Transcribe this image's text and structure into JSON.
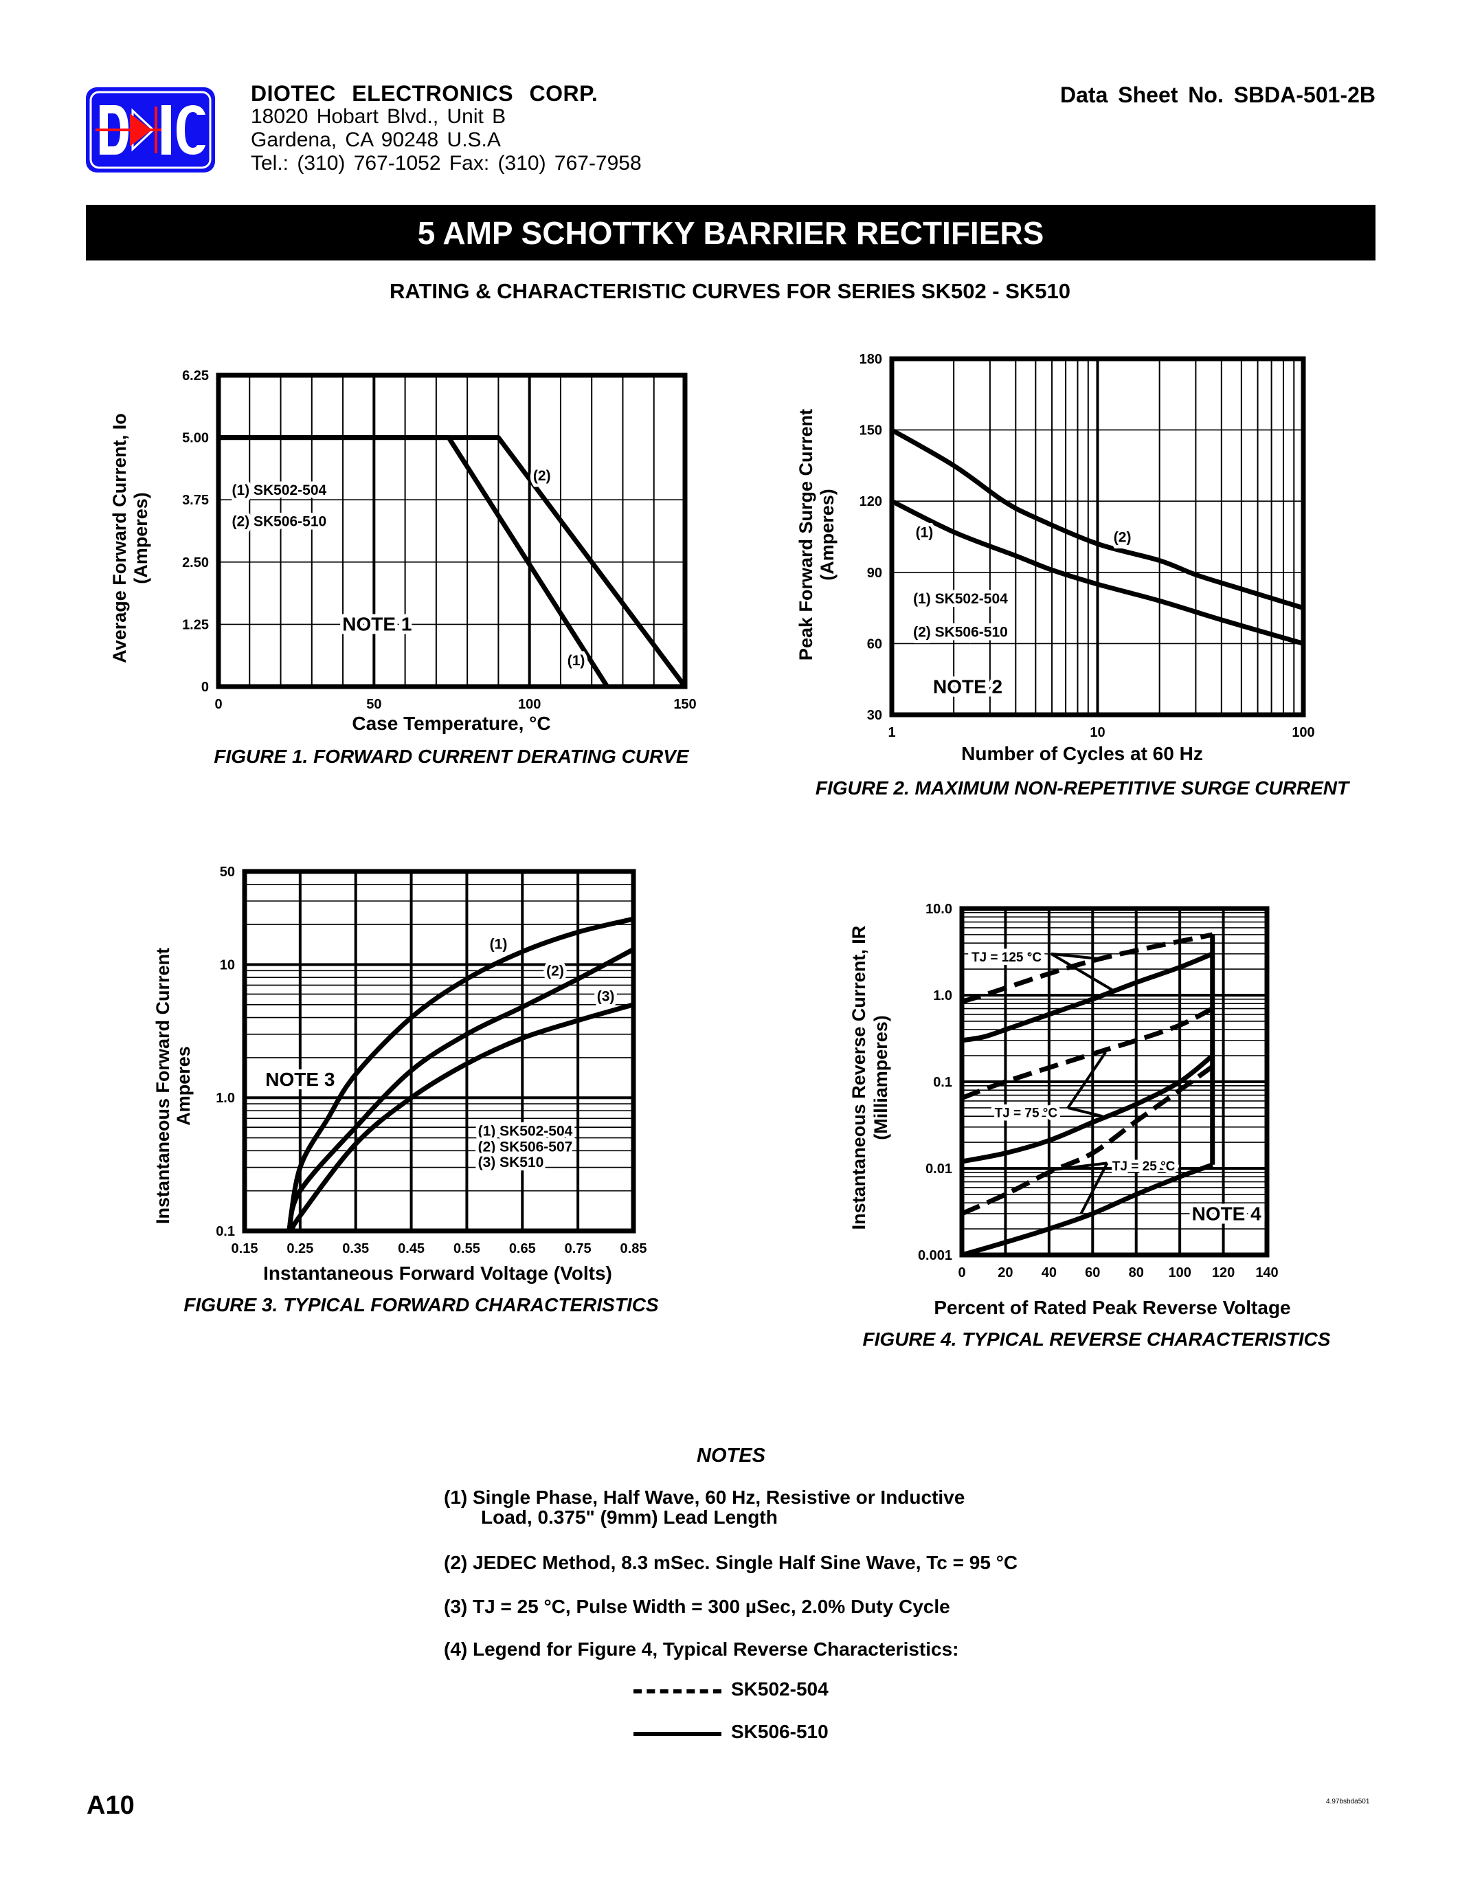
{
  "header": {
    "logo_text": "DIC",
    "company": "DIOTEC  ELECTRONICS  CORP.",
    "address_lines": [
      "18020 Hobart Blvd.,  Unit B",
      "Gardena, CA  90248    U.S.A",
      "Tel.:  (310) 767-1052    Fax:  (310) 767-7958"
    ],
    "data_sheet": "Data Sheet No.  SBDA-501-2B"
  },
  "title": "5 AMP SCHOTTKY BARRIER RECTIFIERS",
  "subtitle": "RATING & CHARACTERISTIC CURVES FOR SERIES SK502 - SK510",
  "colors": {
    "logo_blue": "#1010f0",
    "logo_red": "#ff1010",
    "ink": "#000000"
  },
  "chart_data": [
    {
      "type": "line",
      "title": "FIGURE 1.  FORWARD CURRENT DERATING CURVE",
      "xlabel": "Case Temperature, °C",
      "ylabel_lines": [
        "Average Forward Current, Io",
        "(Amperes)"
      ],
      "xscale": "linear",
      "yscale": "linear",
      "xlim": [
        0,
        150
      ],
      "ylim": [
        0,
        6.25
      ],
      "xticks": [
        0,
        50,
        100,
        150
      ],
      "xtick_labels": [
        "0",
        "50",
        "100",
        "150"
      ],
      "yticks": [
        0,
        1.25,
        2.5,
        3.75,
        5,
        6.25
      ],
      "ytick_labels": [
        "0",
        "1.25",
        "2.50",
        "3.75",
        "5.00",
        "6.25"
      ],
      "grid": true,
      "labels": [
        "(1) SK502-504",
        "(2) SK506-510",
        "NOTE 1",
        "(2)",
        "(1)"
      ],
      "series": [
        {
          "name": "(1) SK502-504",
          "style": "solid",
          "x": [
            0,
            74,
            125
          ],
          "y": [
            5,
            5,
            0
          ]
        },
        {
          "name": "(2) SK506-510",
          "style": "solid",
          "x": [
            0,
            90,
            150
          ],
          "y": [
            5,
            5,
            0
          ]
        }
      ]
    },
    {
      "type": "line",
      "title": "FIGURE 2.  MAXIMUM NON-REPETITIVE SURGE CURRENT",
      "xlabel": "Number of Cycles at 60 Hz",
      "ylabel_lines": [
        "Peak Forward Surge Current",
        "(Amperes)"
      ],
      "xscale": "log",
      "yscale": "linear",
      "xlim": [
        1,
        100
      ],
      "ylim": [
        30,
        180
      ],
      "xticks": [
        1,
        10,
        100
      ],
      "xtick_labels": [
        "1",
        "10",
        "100"
      ],
      "yticks": [
        30,
        60,
        90,
        120,
        150,
        180
      ],
      "ytick_labels": [
        "30",
        "60",
        "90",
        "120",
        "150",
        "180"
      ],
      "grid": true,
      "labels": [
        "(1)",
        "(2)",
        "(1) SK502-504",
        "(2) SK506-510",
        "NOTE 2"
      ],
      "series": [
        {
          "name": "(1) SK502-504",
          "style": "solid",
          "x": [
            1,
            2,
            4,
            6,
            10,
            20,
            40,
            100
          ],
          "y": [
            120,
            107,
            97,
            91,
            85,
            78,
            70,
            60
          ]
        },
        {
          "name": "(2) SK506-510",
          "style": "solid",
          "x": [
            1,
            2,
            3.5,
            5,
            10,
            20,
            30,
            50,
            100
          ],
          "y": [
            150,
            135,
            120,
            113,
            102,
            95,
            89,
            83,
            75
          ]
        }
      ]
    },
    {
      "type": "line",
      "title": "FIGURE 3.  TYPICAL FORWARD CHARACTERISTICS",
      "xlabel": "Instantaneous Forward Voltage (Volts)",
      "ylabel_lines": [
        "Instantaneous Forward Current",
        "Amperes"
      ],
      "xscale": "linear",
      "yscale": "log",
      "xlim": [
        0.15,
        0.85
      ],
      "ylim": [
        0.1,
        50
      ],
      "xticks": [
        0.15,
        0.25,
        0.35,
        0.45,
        0.55,
        0.65,
        0.75,
        0.85
      ],
      "xtick_labels": [
        "0.15",
        "0.25",
        "0.35",
        "0.45",
        "0.55",
        "0.65",
        "0.75",
        "0.85"
      ],
      "yticks": [
        0.1,
        1,
        10,
        50
      ],
      "ytick_labels": [
        "0.1",
        "1.0",
        "10",
        "50"
      ],
      "grid": true,
      "labels": [
        "(1)",
        "(2)",
        "(3)",
        "NOTE 3",
        "(1) SK502-504",
        "(2) SK506-507",
        "(3) SK510"
      ],
      "series": [
        {
          "name": "(1) SK502-504",
          "style": "solid",
          "x": [
            0.23,
            0.25,
            0.3,
            0.35,
            0.45,
            0.55,
            0.65,
            0.75,
            0.85
          ],
          "y": [
            0.1,
            0.3,
            0.7,
            1.5,
            4,
            7.8,
            12.5,
            17.5,
            22
          ]
        },
        {
          "name": "(2) SK506-507",
          "style": "solid",
          "x": [
            0.23,
            0.25,
            0.35,
            0.45,
            0.55,
            0.65,
            0.75,
            0.85
          ],
          "y": [
            0.1,
            0.2,
            0.6,
            1.6,
            3,
            4.8,
            7.8,
            13
          ]
        },
        {
          "name": "(3) SK510",
          "style": "solid",
          "x": [
            0.235,
            0.25,
            0.35,
            0.45,
            0.55,
            0.65,
            0.75,
            0.85
          ],
          "y": [
            0.1,
            0.13,
            0.45,
            1.0,
            1.8,
            2.8,
            3.8,
            5
          ]
        }
      ]
    },
    {
      "type": "line",
      "title": "FIGURE 4.  TYPICAL REVERSE CHARACTERISTICS",
      "xlabel": "Percent of Rated Peak Reverse Voltage",
      "ylabel_lines": [
        "Instantaneous Reverse Current, IR",
        "(Milliamperes)"
      ],
      "xscale": "linear",
      "yscale": "log",
      "xlim": [
        0,
        140
      ],
      "ylim": [
        0.001,
        10
      ],
      "xticks": [
        0,
        20,
        40,
        60,
        80,
        100,
        120,
        140
      ],
      "xtick_labels": [
        "0",
        "20",
        "40",
        "60",
        "80",
        "100",
        "120",
        "140"
      ],
      "yticks": [
        0.001,
        0.01,
        0.1,
        1,
        10
      ],
      "ytick_labels": [
        "0.001",
        "0.01",
        "0.1",
        "1.0",
        "10.0"
      ],
      "grid": true,
      "labels": [
        "TJ = 125 °C",
        "TJ = 75 °C",
        "TJ = 25 °C",
        "NOTE 4"
      ],
      "series": [
        {
          "name": "SK502-504",
          "temperature": "TJ = 125 °C",
          "style": "dashed",
          "x": [
            0,
            10,
            60,
            115
          ],
          "y": [
            0.85,
            1.0,
            2.5,
            5
          ]
        },
        {
          "name": "SK506-510",
          "temperature": "TJ = 125 °C",
          "style": "solid",
          "x": [
            0,
            10,
            20,
            40,
            60,
            80,
            100,
            115
          ],
          "y": [
            0.3,
            0.33,
            0.4,
            0.6,
            0.9,
            1.4,
            2.1,
            3
          ]
        },
        {
          "name": "SK502-504",
          "temperature": "TJ = 75 °C",
          "style": "dashed",
          "x": [
            0,
            20,
            60,
            80,
            100,
            115
          ],
          "y": [
            0.065,
            0.1,
            0.21,
            0.3,
            0.45,
            0.7
          ]
        },
        {
          "name": "SK506-510",
          "temperature": "TJ = 75 °C",
          "style": "solid",
          "x": [
            0,
            20,
            40,
            60,
            80,
            100,
            115
          ],
          "y": [
            0.012,
            0.015,
            0.021,
            0.034,
            0.055,
            0.1,
            0.2
          ]
        },
        {
          "name": "SK502-504",
          "temperature": "TJ = 25 °C",
          "style": "dashed",
          "x": [
            0,
            20,
            40,
            60,
            80,
            100,
            115
          ],
          "y": [
            0.003,
            0.005,
            0.009,
            0.015,
            0.035,
            0.08,
            0.15
          ]
        },
        {
          "name": "SK506-510",
          "temperature": "TJ = 25 °C",
          "style": "solid",
          "x": [
            0,
            20,
            40,
            60,
            80,
            100,
            115
          ],
          "y": [
            0.001,
            0.0014,
            0.002,
            0.003,
            0.005,
            0.008,
            0.011
          ]
        }
      ]
    }
  ],
  "notes": {
    "title": "NOTES",
    "items": [
      "(1)  Single Phase, Half Wave, 60 Hz, Resistive or Inductive",
      "Load, 0.375\" (9mm) Lead Length",
      "(2)  JEDEC Method, 8.3 mSec. Single Half Sine Wave, Tc = 95 °C",
      "(3) TJ = 25 °C, Pulse Width = 300 µSec, 2.0% Duty Cycle",
      "(4) Legend for Figure 4, Typical Reverse Characteristics:"
    ],
    "legend": [
      {
        "style": "dashed",
        "label": "SK502-504"
      },
      {
        "style": "solid",
        "label": "SK506-510"
      }
    ]
  },
  "footer": {
    "page": "A10",
    "code": "4.97bsbda501"
  }
}
